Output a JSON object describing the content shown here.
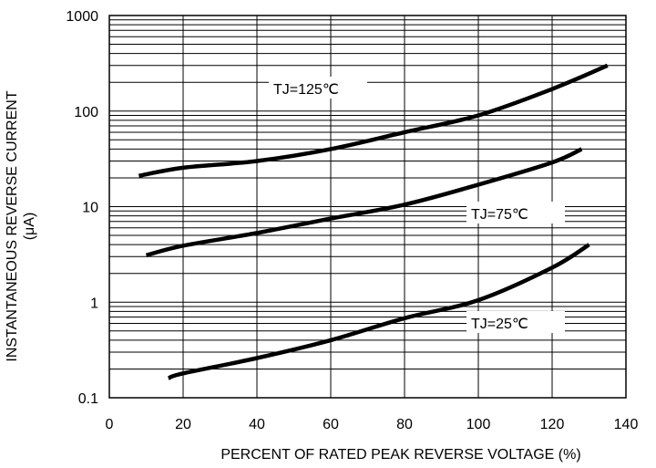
{
  "chart_data": {
    "type": "line",
    "xlabel": "PERCENT OF RATED PEAK REVERSE VOLTAGE (%)",
    "ylabel_line1": "INSTANTANEOUS REVERSE CURRENT",
    "ylabel_line2": "(μA)",
    "xlim": [
      0,
      140
    ],
    "ylim": [
      0.1,
      1000
    ],
    "yscale": "log",
    "grid": true,
    "x_ticks": [
      0,
      20,
      40,
      60,
      80,
      100,
      120,
      140
    ],
    "x_tick_labels": [
      "0",
      "20",
      "40",
      "60",
      "80",
      "100",
      "120",
      "140"
    ],
    "y_ticks": [
      0.1,
      1,
      10,
      100,
      1000
    ],
    "y_tick_labels": [
      "0.1",
      "1",
      "10",
      "100",
      "1000"
    ],
    "series": [
      {
        "name": "TJ=125℃",
        "points": [
          [
            8,
            21
          ],
          [
            20,
            25.5
          ],
          [
            40,
            30
          ],
          [
            60,
            40
          ],
          [
            80,
            60
          ],
          [
            100,
            90
          ],
          [
            120,
            170
          ],
          [
            135,
            300
          ]
        ]
      },
      {
        "name": "TJ=75℃",
        "points": [
          [
            10,
            3.1
          ],
          [
            20,
            3.9
          ],
          [
            40,
            5.3
          ],
          [
            60,
            7.5
          ],
          [
            80,
            10.5
          ],
          [
            100,
            17
          ],
          [
            120,
            29
          ],
          [
            128,
            40
          ]
        ]
      },
      {
        "name": "TJ=25℃",
        "points": [
          [
            16,
            0.16
          ],
          [
            20,
            0.18
          ],
          [
            40,
            0.26
          ],
          [
            60,
            0.4
          ],
          [
            80,
            0.68
          ],
          [
            100,
            1.05
          ],
          [
            120,
            2.3
          ],
          [
            130,
            4
          ]
        ]
      }
    ]
  }
}
